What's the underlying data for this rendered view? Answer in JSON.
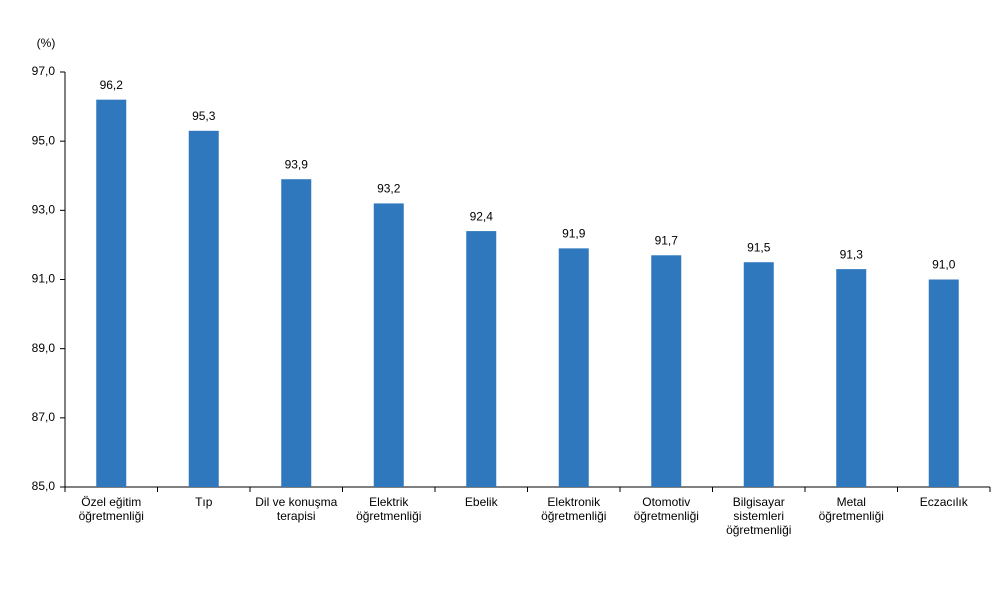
{
  "chart_data": {
    "type": "bar",
    "y_label": "(%)",
    "categories": [
      "Özel eğitim öğretmenliği",
      "Tıp",
      "Dil ve konuşma terapisi",
      "Elektrik öğretmenliği",
      "Ebelik",
      "Elektronik öğretmenliği",
      "Otomotiv öğretmenliği",
      "Bilgisayar sistemleri öğretmenliği",
      "Metal öğretmenliği",
      "Eczacılık"
    ],
    "values": [
      96.2,
      95.3,
      93.9,
      93.2,
      92.4,
      91.9,
      91.7,
      91.5,
      91.3,
      91.0
    ],
    "value_labels": [
      "96,2",
      "95,3",
      "93,9",
      "93,2",
      "92,4",
      "91,9",
      "91,7",
      "91,5",
      "91,3",
      "91,0"
    ],
    "color": "#2f78be",
    "ylim": [
      85,
      97
    ],
    "yticks": [
      {
        "value": 85,
        "label": "85,0"
      },
      {
        "value": 87,
        "label": "87,0"
      },
      {
        "value": 89,
        "label": "89,0"
      },
      {
        "value": 91,
        "label": "91,0"
      },
      {
        "value": 93,
        "label": "93,0"
      },
      {
        "value": 95,
        "label": "95,0"
      },
      {
        "value": 97,
        "label": "97,0"
      }
    ],
    "grid": false
  }
}
